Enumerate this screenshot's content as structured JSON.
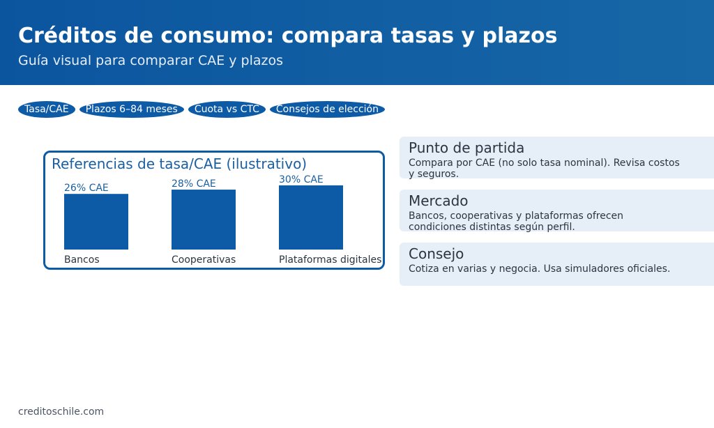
{
  "header": {
    "title": "Créditos de consumo: compara tasas y plazos",
    "subtitle": "Guía visual para comparar CAE y plazos"
  },
  "tabs": [
    "Tasa/CAE",
    "Plazos 6–84 meses",
    "Cuota vs CTC",
    "Consejos de elección"
  ],
  "chart_data": {
    "type": "bar",
    "title": "Referencias de tasa/CAE (ilustrativo)",
    "categories": [
      "Bancos",
      "Cooperativas",
      "Plataformas digitales"
    ],
    "values": [
      26,
      28,
      30
    ],
    "value_labels": [
      "26% CAE",
      "28% CAE",
      "30% CAE"
    ],
    "color": "#0d5aa7"
  },
  "cards": [
    {
      "title": "Punto de partida",
      "text": "Compara por CAE (no solo tasa nominal). Revisa costos y seguros."
    },
    {
      "title": "Mercado",
      "text": "Bancos, cooperativas y plataformas ofrecen condiciones distintas según perfil."
    },
    {
      "title": "Consejo",
      "text": "Cotiza en varias y negocia. Usa simuladores oficiales."
    }
  ],
  "footer": "creditoschile.com"
}
